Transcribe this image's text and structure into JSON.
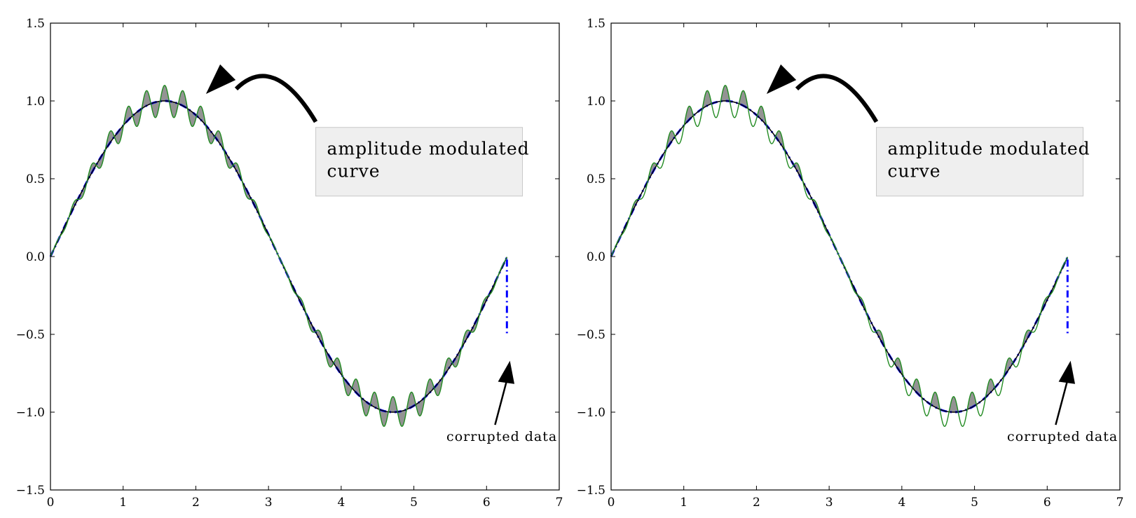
{
  "chart_data": [
    {
      "type": "line",
      "panel": "left",
      "title": "",
      "xlabel": "",
      "ylabel": "",
      "xlim": [
        0,
        7
      ],
      "ylim": [
        -1.5,
        1.5
      ],
      "xticks": [
        0,
        1,
        2,
        3,
        4,
        5,
        6,
        7
      ],
      "yticks": [
        -1.5,
        -1.0,
        -0.5,
        0.0,
        0.5,
        1.0,
        1.5
      ],
      "xtick_labels": [
        "0",
        "1",
        "2",
        "3",
        "4",
        "5",
        "6",
        "7"
      ],
      "ytick_labels": [
        "−1.5",
        "−1.0",
        "−0.5",
        "0.0",
        "0.5",
        "1.0",
        "1.5"
      ],
      "grid": false,
      "series": [
        {
          "style": "dash-dot",
          "color": "#0000ff",
          "formula": "sin(x)",
          "x_range": [
            0,
            6.28
          ],
          "corrupted_endpoint": [
            6.28,
            -0.5
          ]
        },
        {
          "style": "solid",
          "color": "#000000",
          "formula": "sin(x)",
          "x_range": [
            0,
            6.28
          ]
        },
        {
          "style": "solid",
          "color": "#228b22",
          "formula": "sin(x) + 0.1*sin(x)*sin(25x)",
          "x_range": [
            0,
            6.28
          ]
        }
      ],
      "fill_between": {
        "color": "#808080",
        "where": "all"
      },
      "annotations": [
        {
          "text": "amplitude modulated\n curve",
          "xy": [
            2.15,
            1.05
          ],
          "xytext": [
            3.65,
            0.83
          ],
          "boxed": true
        },
        {
          "text": "corrupted data",
          "xy": [
            6.3,
            -0.55
          ],
          "xytext": [
            5.4,
            -1.08
          ],
          "boxed": false
        }
      ]
    },
    {
      "type": "line",
      "panel": "right",
      "title": "",
      "xlabel": "",
      "ylabel": "",
      "xlim": [
        0,
        7
      ],
      "ylim": [
        -1.5,
        1.5
      ],
      "xticks": [
        0,
        1,
        2,
        3,
        4,
        5,
        6,
        7
      ],
      "yticks": [
        -1.5,
        -1.0,
        -0.5,
        0.0,
        0.5,
        1.0,
        1.5
      ],
      "xtick_labels": [
        "0",
        "1",
        "2",
        "3",
        "4",
        "5",
        "6",
        "7"
      ],
      "ytick_labels": [
        "−1.5",
        "−1.0",
        "−0.5",
        "0.0",
        "0.5",
        "1.0",
        "1.5"
      ],
      "grid": false,
      "series": [
        {
          "style": "dash-dot",
          "color": "#0000ff",
          "formula": "sin(x)",
          "x_range": [
            0,
            6.28
          ],
          "corrupted_endpoint": [
            6.28,
            -0.5
          ]
        },
        {
          "style": "solid",
          "color": "#000000",
          "formula": "sin(x)",
          "x_range": [
            0,
            6.28
          ]
        },
        {
          "style": "solid",
          "color": "#228b22",
          "formula": "sin(x) + 0.1*sin(x)*sin(25x)",
          "x_range": [
            0,
            6.28
          ]
        }
      ],
      "fill_between": {
        "color": "#808080",
        "where": "modulated >= base"
      },
      "annotations": [
        {
          "text": "amplitude modulated\n curve",
          "xy": [
            2.15,
            1.05
          ],
          "xytext": [
            3.65,
            0.83
          ],
          "boxed": true
        },
        {
          "text": "corrupted data",
          "xy": [
            6.3,
            -0.55
          ],
          "xytext": [
            5.4,
            -1.08
          ],
          "boxed": false
        }
      ]
    }
  ]
}
